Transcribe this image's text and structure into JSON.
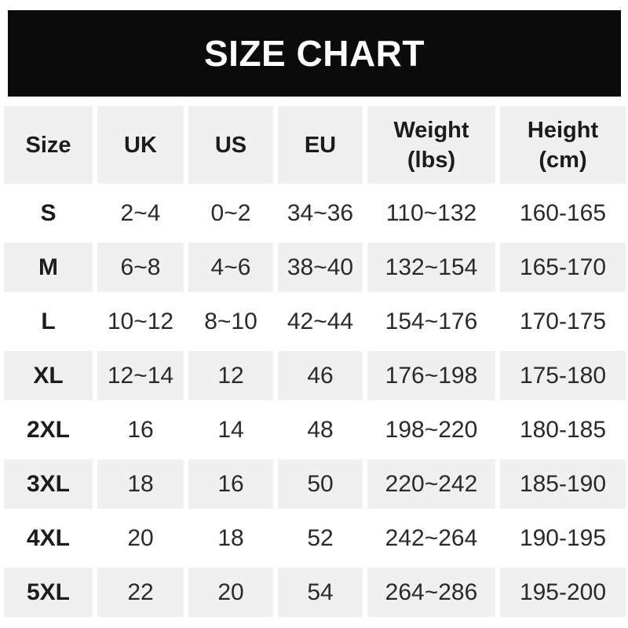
{
  "title": "SIZE CHART",
  "colors": {
    "banner_bg": "#0b0b0b",
    "banner_text": "#ffffff",
    "row_alt_bg": "#f0f0f0",
    "row_bg": "#ffffff",
    "text": "#2a2a2a"
  },
  "table": {
    "headers": [
      "Size",
      "UK",
      "US",
      "EU",
      "Weight\n(lbs)",
      "Height\n(cm)"
    ],
    "rows": [
      {
        "size": "S",
        "values": [
          "2~4",
          "0~2",
          "34~36",
          "110~132",
          "160-165"
        ]
      },
      {
        "size": "M",
        "values": [
          "6~8",
          "4~6",
          "38~40",
          "132~154",
          "165-170"
        ]
      },
      {
        "size": "L",
        "values": [
          "10~12",
          "8~10",
          "42~44",
          "154~176",
          "170-175"
        ]
      },
      {
        "size": "XL",
        "values": [
          "12~14",
          "12",
          "46",
          "176~198",
          "175-180"
        ]
      },
      {
        "size": "2XL",
        "values": [
          "16",
          "14",
          "48",
          "198~220",
          "180-185"
        ]
      },
      {
        "size": "3XL",
        "values": [
          "18",
          "16",
          "50",
          "220~242",
          "185-190"
        ]
      },
      {
        "size": "4XL",
        "values": [
          "20",
          "18",
          "52",
          "242~264",
          "190-195"
        ]
      },
      {
        "size": "5XL",
        "values": [
          "22",
          "20",
          "54",
          "264~286",
          "195-200"
        ]
      }
    ]
  }
}
